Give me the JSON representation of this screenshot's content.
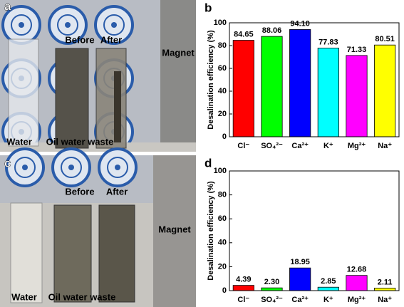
{
  "photos": [
    {
      "panel": "a",
      "labels": [
        "Before",
        "After",
        "Magnet",
        "Water",
        "Oil water waste"
      ]
    },
    {
      "panel": "c",
      "labels": [
        "Before",
        "After",
        "Magnet",
        "Water",
        "Oil water waste"
      ]
    }
  ],
  "chart_data": [
    {
      "type": "bar",
      "panel": "b",
      "ylabel": "Desalination efficiency (%)",
      "categories": [
        "Cl⁻",
        "SO₄²⁻",
        "Ca²⁺",
        "K⁺",
        "Mg²⁺",
        "Na⁺"
      ],
      "values": [
        84.65,
        88.06,
        94.1,
        77.83,
        71.33,
        80.51
      ],
      "value_labels": [
        "84.65",
        "88.06",
        "94.10",
        "77.83",
        "71.33",
        "80.51"
      ],
      "colors": [
        "#ff0000",
        "#00ff00",
        "#0000ff",
        "#00ffff",
        "#ff00ff",
        "#ffff00"
      ],
      "ylim": [
        0,
        100
      ],
      "yticks": [
        0,
        20,
        40,
        60,
        80,
        100
      ]
    },
    {
      "type": "bar",
      "panel": "d",
      "ylabel": "Desalination efficiency (%)",
      "categories": [
        "Cl⁻",
        "SO₄²⁻",
        "Ca²⁺",
        "K⁺",
        "Mg²⁺",
        "Na⁺"
      ],
      "values": [
        4.39,
        2.3,
        18.95,
        2.85,
        12.68,
        2.11
      ],
      "value_labels": [
        "4.39",
        "2.30",
        "18.95",
        "2.85",
        "12.68",
        "2.11"
      ],
      "colors": [
        "#ff0000",
        "#00ff00",
        "#0000ff",
        "#00ffff",
        "#ff00ff",
        "#ffff00"
      ],
      "ylim": [
        0,
        100
      ],
      "yticks": [
        0,
        20,
        40,
        60,
        80,
        100
      ]
    }
  ]
}
